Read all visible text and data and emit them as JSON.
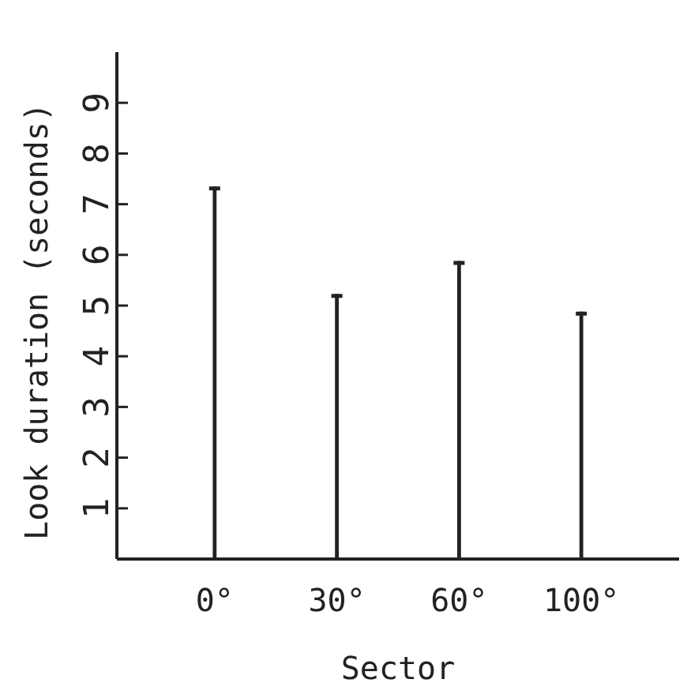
{
  "chart_data": {
    "type": "bar",
    "xlabel": "Sector",
    "ylabel": "Look duration (seconds)",
    "categories": [
      "0°",
      "30°",
      "60°",
      "100°"
    ],
    "values": [
      7.35,
      5.23,
      5.88,
      4.88
    ],
    "color": "#222222",
    "ylim": [
      0,
      10
    ],
    "yticks": [
      1,
      2,
      3,
      4,
      5,
      6,
      7,
      8,
      9
    ],
    "grid": false
  }
}
